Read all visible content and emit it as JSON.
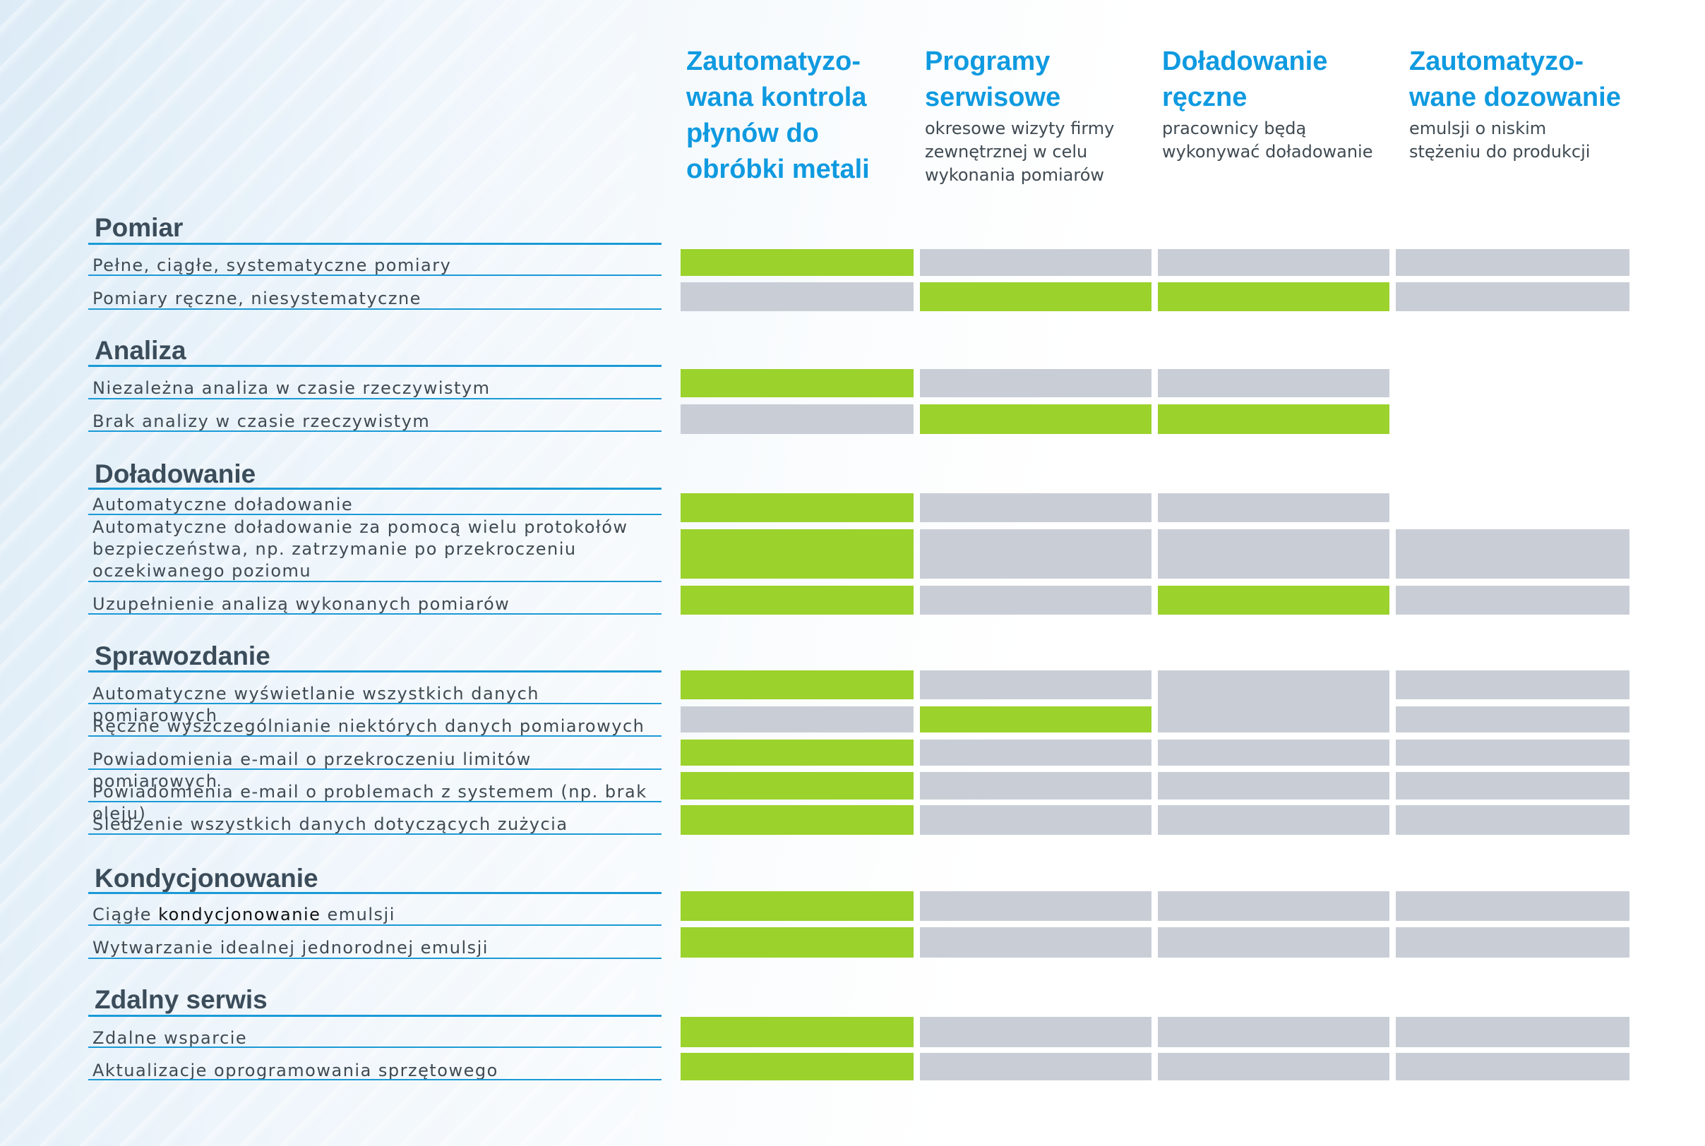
{
  "columns": [
    {
      "title": "Zautomatyzo-\nwana kontrola\npłynów do\nobróbki metali",
      "subtitle": ""
    },
    {
      "title": "Programy\nserwisowe",
      "subtitle": "okresowe wizyty firmy\nzewnętrznej w celu\nwykonania pomiarów"
    },
    {
      "title": "Doładowanie\nręczne",
      "subtitle": "pracownicy będą\nwykonywać doładowanie"
    },
    {
      "title": "Zautomatyzo-\nwane dozowanie",
      "subtitle": "emulsji o niskim\nstężeniu do produkcji"
    }
  ],
  "legend_colors": {
    "yes": "#9bd22c",
    "no": "#c9ced6",
    "accent": "#0f9ae0"
  },
  "sections": [
    {
      "title": "Pomiar",
      "rows": [
        {
          "label": "Pełne, ciągłe, systematyczne pomiary",
          "cells": [
            "yes",
            "no",
            "no",
            "no"
          ]
        },
        {
          "label": "Pomiary ręczne, niesystematyczne",
          "cells": [
            "no",
            "yes",
            "yes",
            "no"
          ]
        }
      ]
    },
    {
      "title": "Analiza",
      "rows": [
        {
          "label": "Niezależna analiza w czasie rzeczywistym",
          "cells": [
            "yes",
            "no",
            "no",
            "none"
          ]
        },
        {
          "label": "Brak analizy w czasie rzeczywistym",
          "cells": [
            "no",
            "yes",
            "yes",
            "none"
          ]
        }
      ]
    },
    {
      "title": "Doładowanie",
      "rows": [
        {
          "label": "Automatyczne doładowanie",
          "cells": [
            "yes",
            "no",
            "no",
            "none"
          ]
        },
        {
          "label": "Automatyczne doładowanie za pomocą wielu protokołów\nbezpieczeństwa, np. zatrzymanie po przekroczeniu\noczekiwanego poziomu",
          "cells": [
            "yes",
            "no",
            "no",
            "no"
          ]
        },
        {
          "label": "Uzupełnienie analizą wykonanych pomiarów",
          "cells": [
            "yes",
            "no",
            "yes",
            "no"
          ]
        }
      ]
    },
    {
      "title": "Sprawozdanie",
      "rows": [
        {
          "label": "Automatyczne wyświetlanie wszystkich danych pomiarowych",
          "cells": [
            "yes",
            "no",
            "no (merged)",
            "no"
          ]
        },
        {
          "label": "Ręczne wyszczególnianie niektórych danych pomiarowych",
          "cells": [
            "no",
            "yes",
            "no (merged)",
            "no"
          ]
        },
        {
          "label": "Powiadomienia e-mail o przekroczeniu limitów pomiarowych",
          "cells": [
            "yes",
            "no",
            "no",
            "no"
          ]
        },
        {
          "label": "Powiadomienia e-mail o problemach z systemem (np. brak oleju)",
          "cells": [
            "yes",
            "no",
            "no",
            "no"
          ]
        },
        {
          "label": "Śledzenie wszystkich danych dotyczących zużycia",
          "cells": [
            "yes",
            "no",
            "no",
            "no"
          ]
        }
      ]
    },
    {
      "title": "Kondycjonowanie",
      "rows": [
        {
          "label_pre": "Ciągłe ",
          "label_hl": "kondycjonowanie",
          "label_post": " emulsji",
          "cells": [
            "yes",
            "no",
            "no",
            "no"
          ]
        },
        {
          "label": "Wytwarzanie idealnej jednorodnej emulsji",
          "cells": [
            "yes",
            "no",
            "no",
            "no"
          ]
        }
      ]
    },
    {
      "title": "Zdalny serwis",
      "rows": [
        {
          "label": "Zdalne wsparcie",
          "cells": [
            "yes",
            "no",
            "no",
            "no"
          ]
        },
        {
          "label": "Aktualizacje oprogramowania sprzętowego",
          "cells": [
            "yes",
            "no",
            "no",
            "no"
          ]
        }
      ]
    }
  ]
}
